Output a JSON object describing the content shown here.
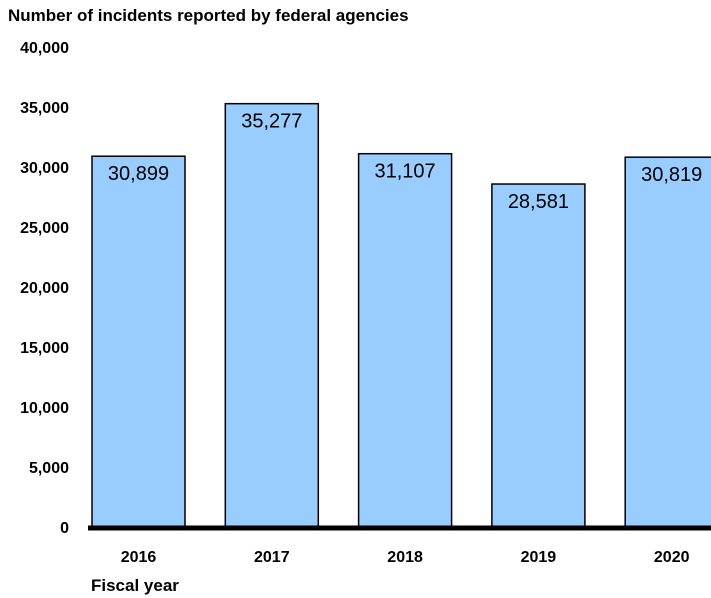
{
  "chart_data": {
    "type": "bar",
    "title": "Number of incidents reported by federal agencies",
    "xlabel": "Fiscal year",
    "ylabel": "",
    "categories": [
      "2016",
      "2017",
      "2018",
      "2019",
      "2020"
    ],
    "values": [
      30899,
      35277,
      31107,
      28581,
      30819
    ],
    "value_labels": [
      "30,899",
      "35,277",
      "31,107",
      "28,581",
      "30,819"
    ],
    "ylim": [
      0,
      40000
    ],
    "yticks": [
      0,
      5000,
      10000,
      15000,
      20000,
      25000,
      30000,
      35000,
      40000
    ],
    "ytick_labels": [
      "0",
      "5,000",
      "10,000",
      "15,000",
      "20,000",
      "25,000",
      "30,000",
      "35,000",
      "40,000"
    ],
    "grid": false,
    "legend": "none",
    "colors": {
      "bar_fill": "#99ccff",
      "bar_stroke": "#000000",
      "axis": "#000000"
    }
  }
}
